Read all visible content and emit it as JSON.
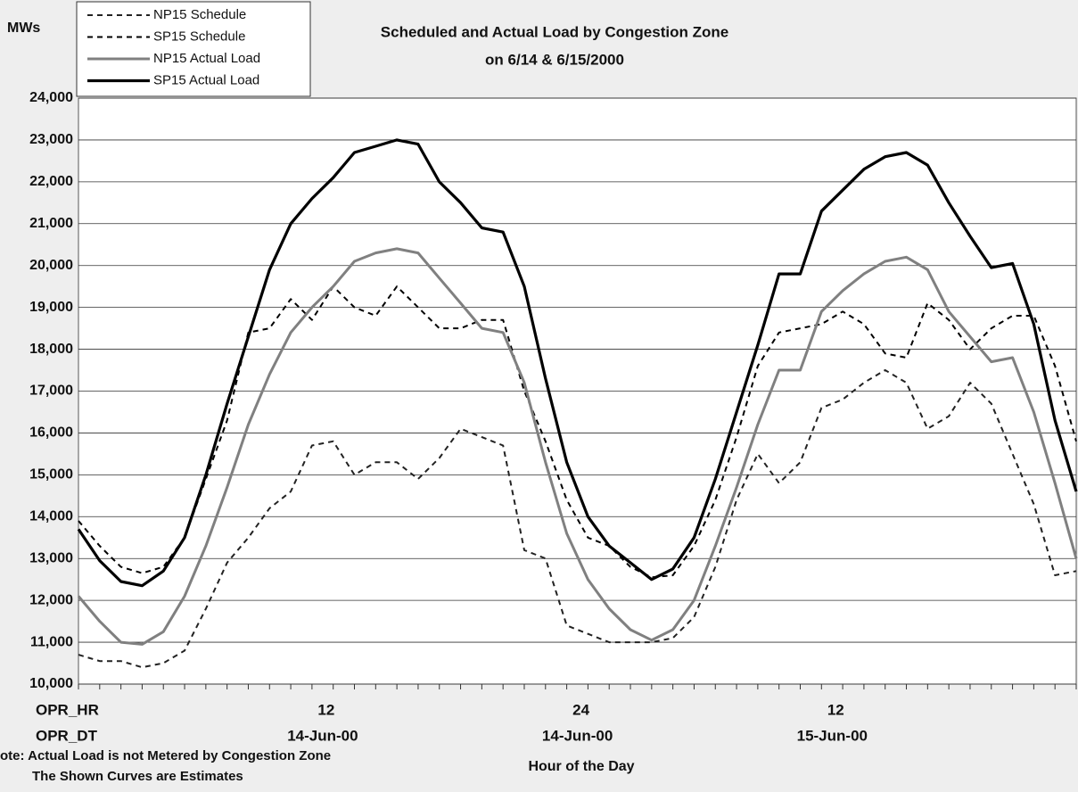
{
  "chart_data": {
    "type": "line",
    "title": "Scheduled and Actual Load by Congestion Zone",
    "subtitle": "on 6/14 & 6/15/2000",
    "y_label": "MWs",
    "x_label": "Hour of the Day",
    "hour_row_label": "OPR_HR",
    "date_row_label": "OPR_DT",
    "notes": [
      "ote: Actual Load is not Metered by Congestion Zone",
      "The Shown Curves are Estimates"
    ],
    "categories": [
      null,
      null,
      null,
      null,
      null,
      null,
      null,
      null,
      null,
      null,
      null,
      "12",
      null,
      null,
      null,
      null,
      null,
      null,
      null,
      null,
      null,
      null,
      null,
      "24",
      null,
      null,
      null,
      null,
      null,
      null,
      null,
      null,
      null,
      null,
      null,
      "12",
      null,
      null,
      null,
      null,
      null,
      null,
      null,
      null,
      null,
      null,
      null,
      null
    ],
    "dates": [
      null,
      null,
      null,
      null,
      null,
      null,
      null,
      null,
      null,
      null,
      null,
      "14-Jun-00",
      null,
      null,
      null,
      null,
      null,
      null,
      null,
      null,
      null,
      null,
      null,
      "14-Jun-00",
      null,
      null,
      null,
      null,
      null,
      null,
      null,
      null,
      null,
      null,
      null,
      "15-Jun-00",
      null,
      null,
      null,
      null,
      null,
      null,
      null,
      null,
      null,
      null,
      null,
      null
    ],
    "series": [
      {
        "name": "NP15 Schedule",
        "color": "#222222",
        "dash": true,
        "values": [
          10700,
          10550,
          10550,
          10400,
          10500,
          10800,
          11800,
          12900,
          13500,
          14200,
          14600,
          15700,
          15800,
          15000,
          15300,
          15300,
          14900,
          15400,
          16100,
          15900,
          15700,
          13200,
          13000,
          11400,
          11200,
          11000,
          11000,
          11000,
          11100,
          11600,
          12800,
          14400,
          15500,
          14800,
          15300,
          16600,
          16800,
          17200,
          17500,
          17200,
          16100,
          16400,
          17200,
          16700,
          15500,
          14300,
          12600,
          12700
        ]
      },
      {
        "name": "SP15 Schedule",
        "color": "#000000",
        "dash": true,
        "values": [
          13900,
          13300,
          12800,
          12650,
          12800,
          13500,
          14900,
          16300,
          18400,
          18500,
          19200,
          18700,
          19500,
          19000,
          18800,
          19500,
          19000,
          18500,
          18500,
          18700,
          18700,
          17000,
          15800,
          14400,
          13500,
          13300,
          12800,
          12550,
          12600,
          13300,
          14400,
          15900,
          17600,
          18400,
          18500,
          18600,
          18900,
          18600,
          17900,
          17800,
          19100,
          18700,
          18000,
          18500,
          18800,
          18800,
          17600,
          15800
        ]
      },
      {
        "name": "NP15 Actual Load",
        "color": "#808080",
        "dash": false,
        "values": [
          12100,
          11500,
          11000,
          10950,
          11250,
          12100,
          13300,
          14700,
          16200,
          17400,
          18400,
          19000,
          19500,
          20100,
          20300,
          20400,
          20300,
          19700,
          19100,
          18500,
          18400,
          17200,
          15300,
          13600,
          12500,
          11800,
          11300,
          11050,
          11300,
          12000,
          13300,
          14700,
          16200,
          17500,
          17500,
          18900,
          19400,
          19800,
          20100,
          20200,
          19900,
          18900,
          18300,
          17700,
          17800,
          16500,
          14800,
          13000
        ]
      },
      {
        "name": "SP15 Actual Load",
        "color": "#000000",
        "dash": false,
        "values": [
          13700,
          12950,
          12450,
          12350,
          12700,
          13500,
          15000,
          16700,
          18300,
          19900,
          21000,
          21600,
          22100,
          22700,
          22850,
          23000,
          22900,
          22000,
          21500,
          20900,
          20800,
          19500,
          17300,
          15300,
          14000,
          13300,
          12900,
          12500,
          12750,
          13500,
          14900,
          16500,
          18100,
          19800,
          19800,
          21300,
          21800,
          22300,
          22600,
          22700,
          22400,
          21500,
          20700,
          19950,
          20050,
          18600,
          16300,
          14600
        ]
      }
    ],
    "ylim": [
      10000,
      24000
    ],
    "yticks": [
      {
        "value": 10000,
        "label": "10,000"
      },
      {
        "value": 11000,
        "label": "11,000"
      },
      {
        "value": 12000,
        "label": "12,000"
      },
      {
        "value": 13000,
        "label": "13,000"
      },
      {
        "value": 14000,
        "label": "14,000"
      },
      {
        "value": 15000,
        "label": "15,000"
      },
      {
        "value": 16000,
        "label": "16,000"
      },
      {
        "value": 17000,
        "label": "17,000"
      },
      {
        "value": 18000,
        "label": "18,000"
      },
      {
        "value": 19000,
        "label": "19,000"
      },
      {
        "value": 20000,
        "label": "20,000"
      },
      {
        "value": 21000,
        "label": "21,000"
      },
      {
        "value": 22000,
        "label": "22,000"
      },
      {
        "value": 23000,
        "label": "23,000"
      },
      {
        "value": 24000,
        "label": "24,000"
      }
    ],
    "grid": true,
    "legend": "top-left"
  }
}
